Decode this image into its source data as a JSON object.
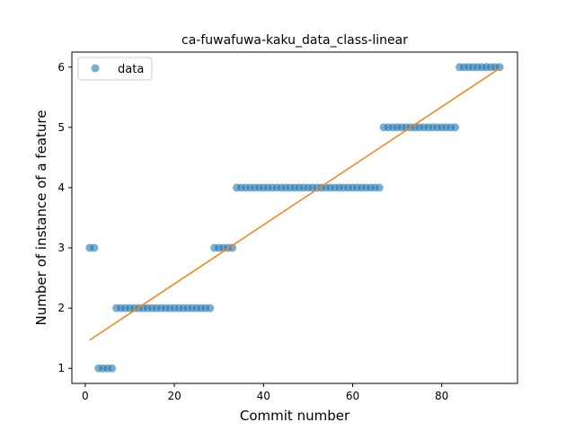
{
  "chart_data": {
    "type": "scatter",
    "title": "ca-fuwafuwa-kaku_data_class-linear",
    "xlabel": "Commit number",
    "ylabel": "Number of instance of a feature",
    "xlim": [
      -3,
      97
    ],
    "ylim": [
      0.75,
      6.25
    ],
    "xticks": [
      0,
      20,
      40,
      60,
      80
    ],
    "yticks": [
      1,
      2,
      3,
      4,
      5,
      6
    ],
    "legend": {
      "position": "top-left",
      "entries": [
        "data"
      ]
    },
    "colors": {
      "data": "#1f77b4",
      "fit": "#ff7f0e"
    },
    "series": [
      {
        "name": "data",
        "kind": "scatter",
        "runs": [
          {
            "x_start": 1,
            "x_end": 2,
            "y": 3
          },
          {
            "x_start": 3,
            "x_end": 6,
            "y": 1
          },
          {
            "x_start": 7,
            "x_end": 28,
            "y": 2
          },
          {
            "x_start": 29,
            "x_end": 33,
            "y": 3
          },
          {
            "x_start": 34,
            "x_end": 66,
            "y": 4
          },
          {
            "x_start": 67,
            "x_end": 83,
            "y": 5
          },
          {
            "x_start": 84,
            "x_end": 93,
            "y": 6
          }
        ]
      },
      {
        "kind": "line",
        "x": [
          1,
          93
        ],
        "y": [
          1.47,
          5.98
        ]
      }
    ]
  }
}
